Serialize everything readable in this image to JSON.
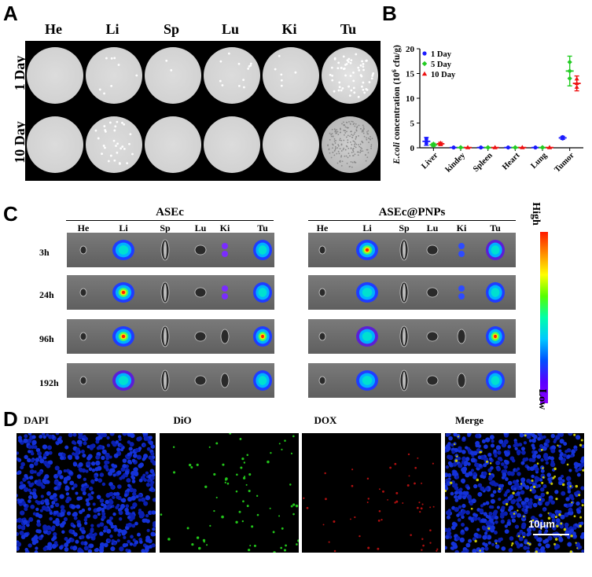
{
  "panel_a": {
    "letter": "A",
    "columns": [
      "He",
      "Li",
      "Sp",
      "Lu",
      "Ki",
      "Tu"
    ],
    "rows": [
      "1 Day",
      "10 Day"
    ]
  },
  "panel_b": {
    "letter": "B",
    "chart_data": {
      "type": "scatter",
      "ylabel_prefix": "E.coli",
      "ylabel": "E.coli concentration (10^6 cfu/g)",
      "ylabel_rest": " concentration (10",
      "ylabel_exp": "6",
      "ylabel_unit": " cfu/g)",
      "ylim": [
        0,
        20
      ],
      "yticks": [
        "0",
        "5",
        "10",
        "15",
        "20"
      ],
      "categories": [
        "Liver",
        "kindey",
        "Spleen",
        "Heart",
        "Lung",
        "Tumor"
      ],
      "series": [
        {
          "name": "1 Day",
          "color": "#1a1aff",
          "values": [
            1.3,
            0.05,
            0.05,
            0.05,
            0.05,
            2.0
          ]
        },
        {
          "name": "5 Day",
          "color": "#22cc22",
          "values": [
            0.6,
            0.05,
            0.05,
            0.05,
            0.05,
            15.5
          ]
        },
        {
          "name": "10 Day",
          "color": "#ee1111",
          "values": [
            0.8,
            0.05,
            0.05,
            0.05,
            0.05,
            13.0
          ]
        }
      ],
      "errors": [
        [
          0.8,
          0,
          0,
          0,
          0,
          0.3
        ],
        [
          0.3,
          0,
          0,
          0,
          0,
          3.0
        ],
        [
          0.3,
          0,
          0,
          0,
          0,
          1.5
        ]
      ],
      "legend_position": "top-left"
    }
  },
  "panel_c": {
    "letter": "C",
    "groups": [
      "ASEc",
      "ASEc@PNPs"
    ],
    "columns": [
      "He",
      "Li",
      "Sp",
      "Lu",
      "Ki",
      "Tu"
    ],
    "rows": [
      "3h",
      "24h",
      "96h",
      "192h"
    ],
    "scale_high": "High",
    "scale_low": "Low"
  },
  "panel_d": {
    "letter": "D",
    "channels": [
      "DAPI",
      "DiO",
      "DOX",
      "Merge"
    ],
    "scale_bar": "10μm"
  }
}
